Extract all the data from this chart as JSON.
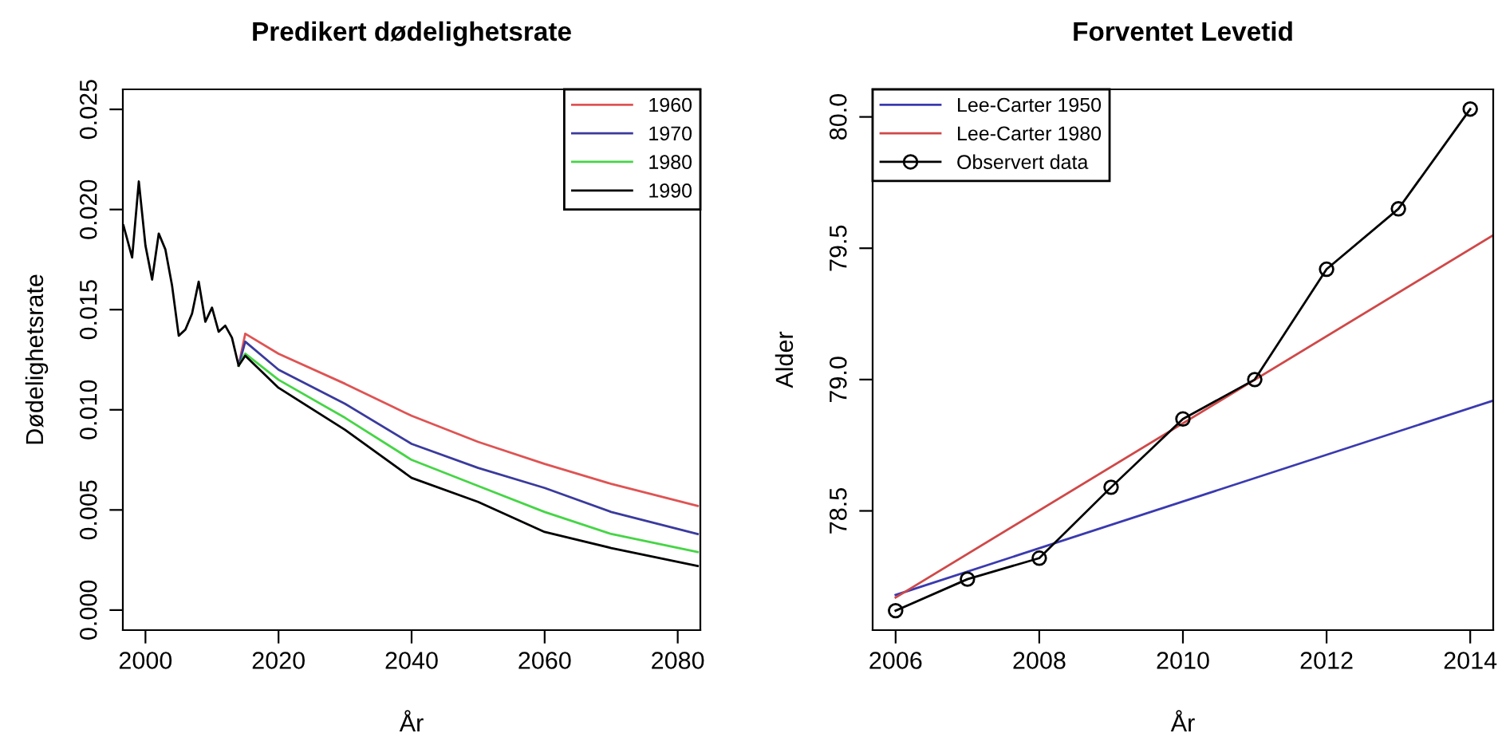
{
  "chart_data": [
    {
      "type": "line",
      "title": "Predikert dødelighetsrate",
      "xlabel": "År",
      "ylabel": "Dødelighetsrate",
      "xlim": [
        1996.6,
        2083.4
      ],
      "ylim": [
        -0.001,
        0.026
      ],
      "xticks": [
        2000,
        2020,
        2040,
        2060,
        2080
      ],
      "yticks": [
        {
          "value": 0,
          "label": "0.000"
        },
        {
          "value": 0.005,
          "label": "0.005"
        },
        {
          "value": 0.01,
          "label": "0.010"
        },
        {
          "value": 0.015,
          "label": "0.015"
        },
        {
          "value": 0.02,
          "label": "0.020"
        },
        {
          "value": 0.025,
          "label": "0.025"
        }
      ],
      "grid": false,
      "legend": "top right",
      "marker": "none",
      "line_style": "solid",
      "series": [
        {
          "name": "1960",
          "color": "#df5353",
          "x": [
            2014,
            2015,
            2020,
            2030,
            2040,
            2050,
            2060,
            2070,
            2083
          ],
          "values": [
            0.0122,
            0.0138,
            0.0128,
            0.0113,
            0.0097,
            0.0084,
            0.0073,
            0.0063,
            0.0052
          ]
        },
        {
          "name": "1970",
          "color": "#3a3a9e",
          "x": [
            2014,
            2015,
            2020,
            2030,
            2040,
            2050,
            2060,
            2070,
            2083
          ],
          "values": [
            0.0122,
            0.0134,
            0.012,
            0.0103,
            0.0083,
            0.0071,
            0.0061,
            0.0049,
            0.0038
          ]
        },
        {
          "name": "1980",
          "color": "#45d545",
          "x": [
            2014,
            2015,
            2020,
            2030,
            2040,
            2050,
            2060,
            2070,
            2083
          ],
          "values": [
            0.0122,
            0.0128,
            0.0115,
            0.0096,
            0.0075,
            0.0062,
            0.0049,
            0.0038,
            0.0029
          ]
        },
        {
          "name": "1990",
          "color": "#000000",
          "x": [
            1996.7,
            1998,
            1999,
            2000,
            2001,
            2002,
            2003,
            2004,
            2005,
            2006,
            2007,
            2008,
            2009,
            2010,
            2011,
            2012,
            2013,
            2014,
            2015,
            2020,
            2030,
            2040,
            2050,
            2060,
            2070,
            2083
          ],
          "values": [
            0.0192,
            0.0176,
            0.0214,
            0.0182,
            0.0165,
            0.0188,
            0.018,
            0.0162,
            0.0137,
            0.014,
            0.0148,
            0.0164,
            0.0144,
            0.0151,
            0.0139,
            0.0142,
            0.0136,
            0.0122,
            0.0127,
            0.0111,
            0.009,
            0.0066,
            0.0054,
            0.0039,
            0.0031,
            0.0022
          ]
        }
      ]
    },
    {
      "type": "line",
      "title": "Forventet Levetid",
      "xlabel": "År",
      "ylabel": "Alder",
      "xlim": [
        2005.68,
        2014.32
      ],
      "ylim": [
        78.046,
        80.105
      ],
      "xticks": [
        2006,
        2008,
        2010,
        2012,
        2014
      ],
      "yticks": [
        {
          "value": 78.5,
          "label": "78.5"
        },
        {
          "value": 79,
          "label": "79.0"
        },
        {
          "value": 79.5,
          "label": "79.5"
        },
        {
          "value": 80,
          "label": "80.0"
        }
      ],
      "grid": false,
      "legend": "top left",
      "line_style": "solid",
      "series": [
        {
          "name": "Lee-Carter 1950",
          "color": "#3a3ab0",
          "x": [
            2006,
            2014.32
          ],
          "values": [
            78.18,
            78.92
          ],
          "marker": "none"
        },
        {
          "name": "Lee-Carter 1980",
          "color": "#d04848",
          "x": [
            2006,
            2014.32
          ],
          "values": [
            78.17,
            79.55
          ],
          "marker": "none"
        },
        {
          "name": "Observert data",
          "color": "#000000",
          "x": [
            2006,
            2007,
            2008,
            2009,
            2010,
            2011,
            2012,
            2013,
            2014
          ],
          "values": [
            78.12,
            78.24,
            78.32,
            78.59,
            78.85,
            79.0,
            79.42,
            79.65,
            80.03
          ],
          "marker": "circle"
        }
      ]
    }
  ]
}
